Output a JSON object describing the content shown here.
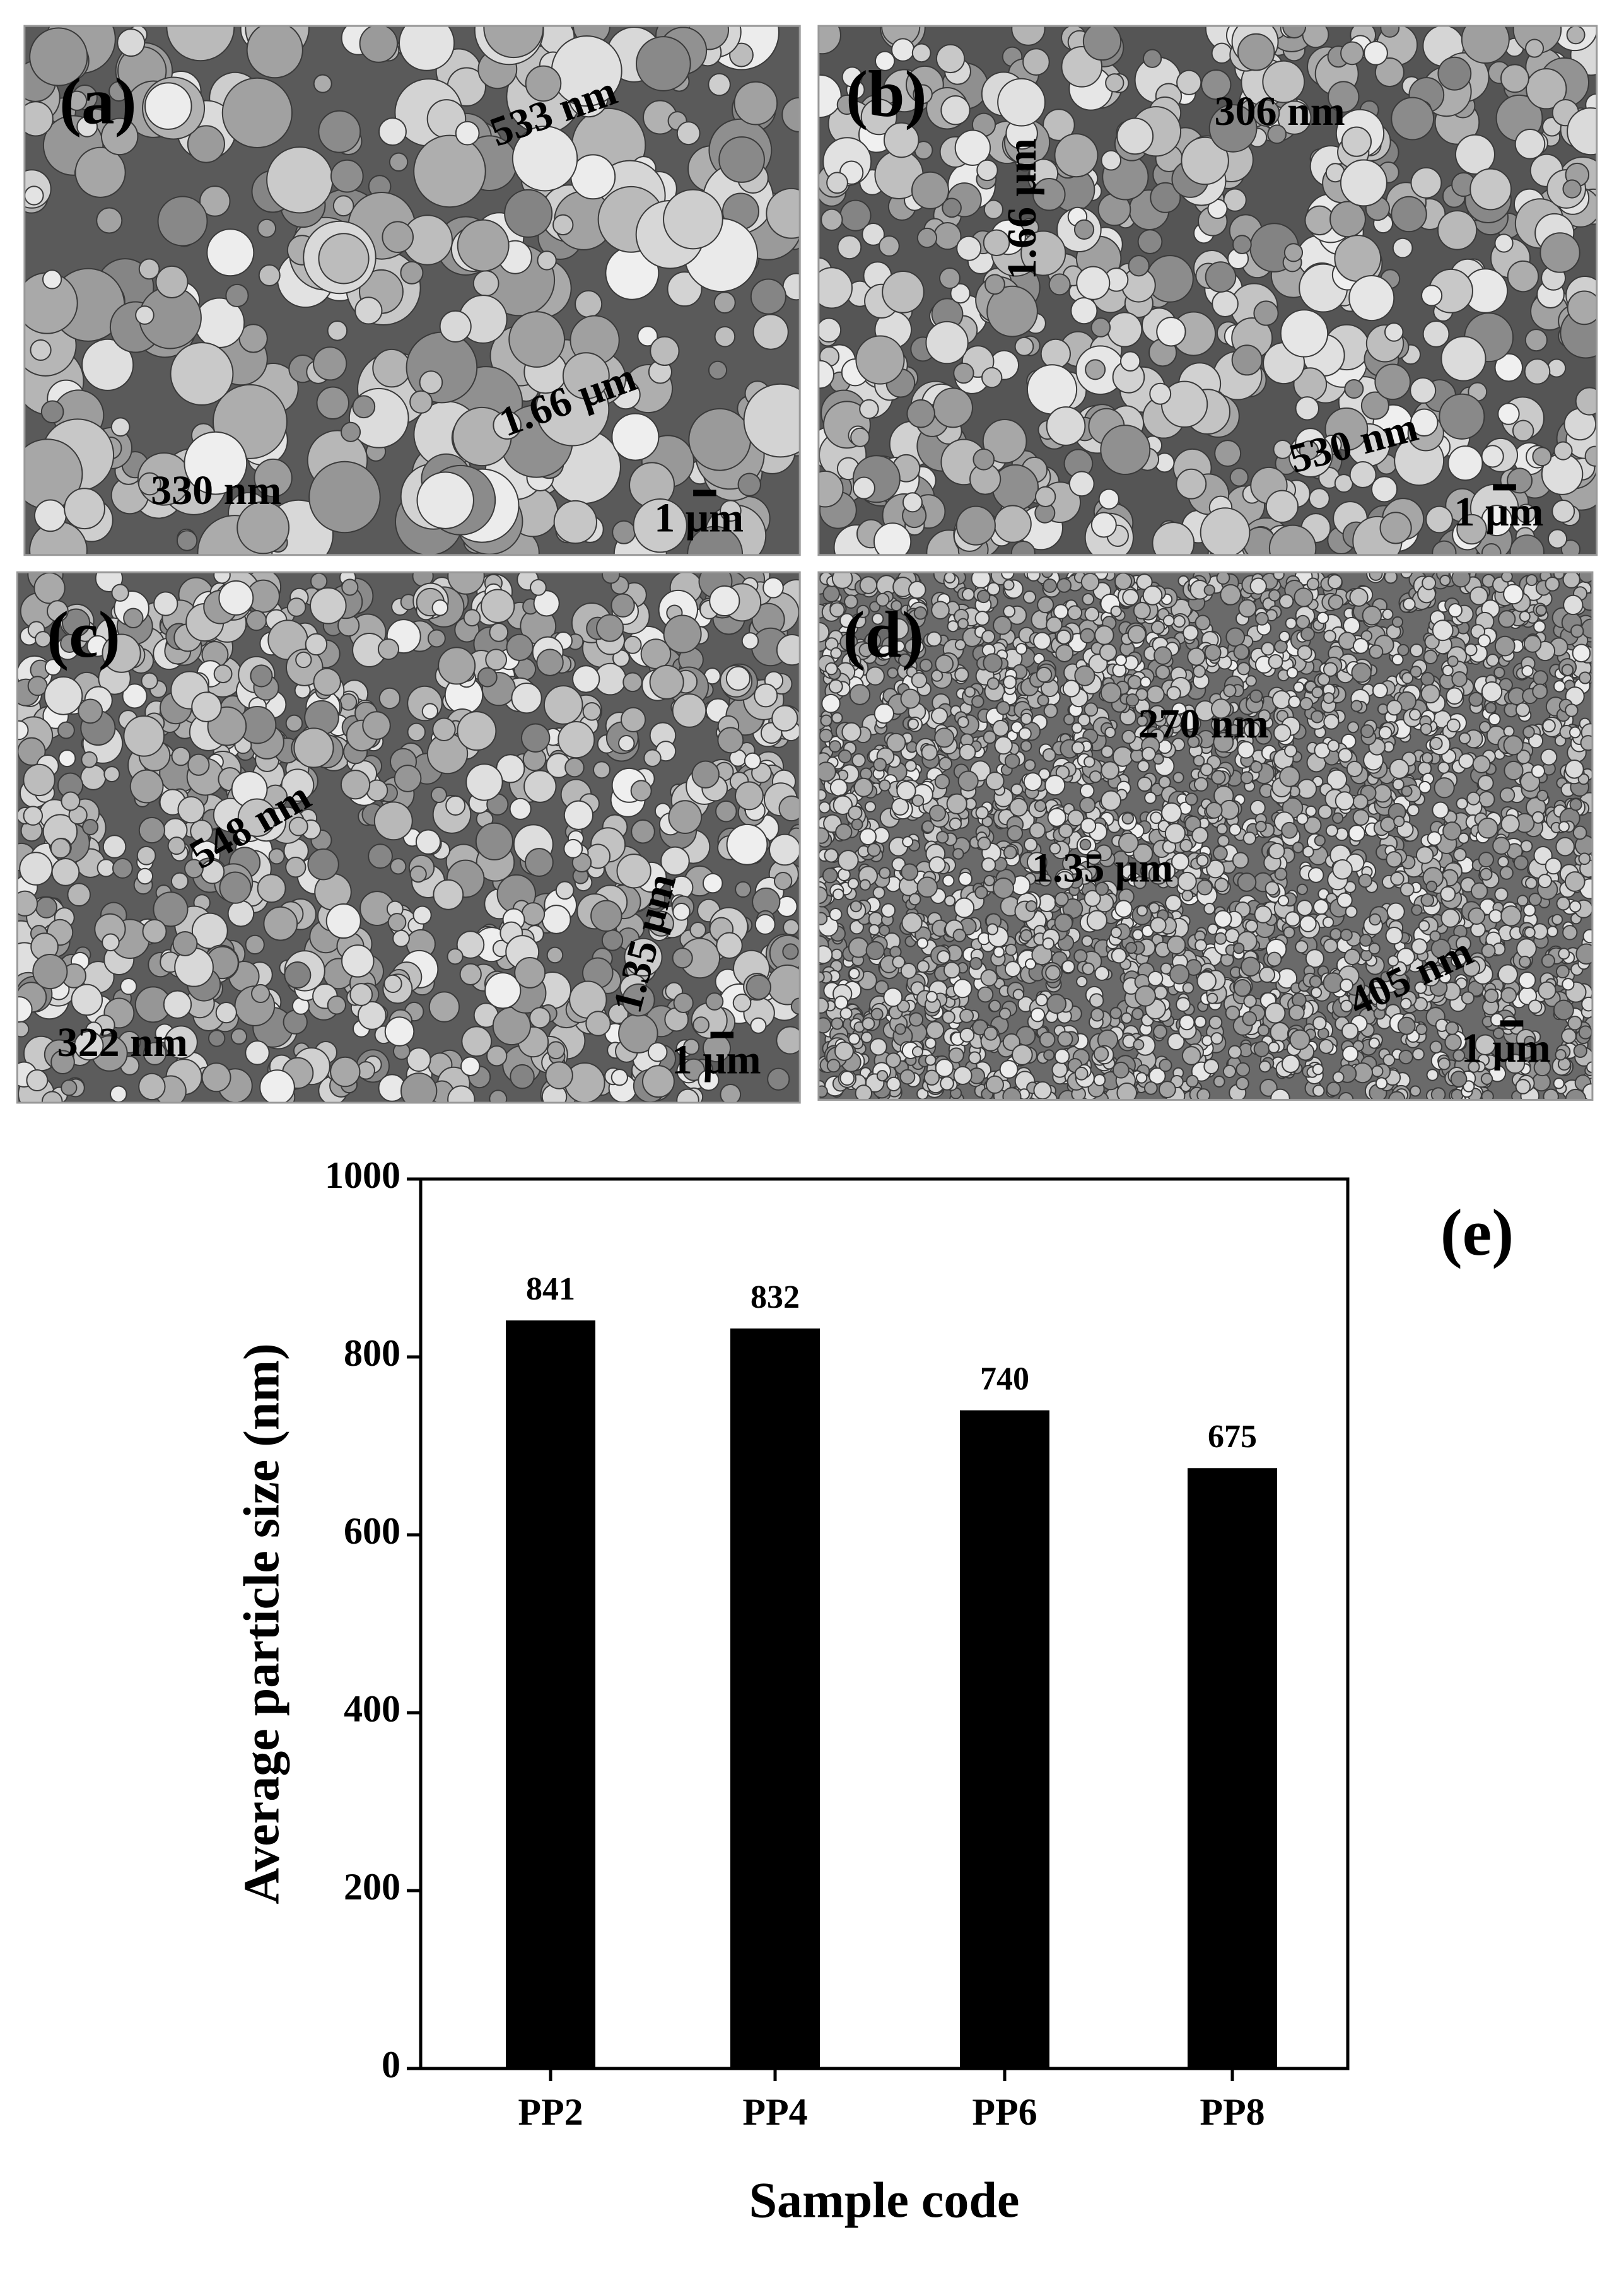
{
  "panels": [
    {
      "label": "(a)",
      "annotations": [
        "533 nm",
        "1.66 μm",
        "330 nm"
      ],
      "scale_bar": "1 μm"
    },
    {
      "label": "(b)",
      "annotations": [
        "306 nm",
        "1.66 μm",
        "530 nm"
      ],
      "scale_bar": "1 μm"
    },
    {
      "label": "(c)",
      "annotations": [
        "548 nm",
        "1.35 μm",
        "322 nm"
      ],
      "scale_bar": "1 μm"
    },
    {
      "label": "(d)",
      "annotations": [
        "270 nm",
        "1.35 μm",
        "405 nm"
      ],
      "scale_bar": "1 μm"
    }
  ],
  "chart_data": {
    "type": "bar",
    "panel_label": "(e)",
    "x_label": "Sample code",
    "y_label": "Average particle size (nm)",
    "categories": [
      "PP2",
      "PP4",
      "PP6",
      "PP8"
    ],
    "values": [
      841,
      832,
      740,
      675
    ],
    "color": "#000000",
    "ylim": [
      0,
      1000
    ],
    "yticks": [
      0,
      200,
      400,
      600,
      800,
      1000
    ],
    "grid": false
  }
}
